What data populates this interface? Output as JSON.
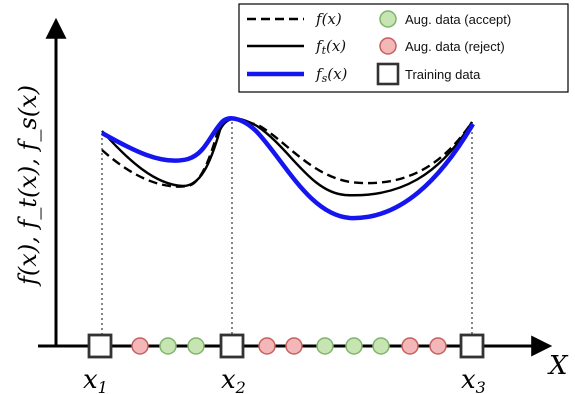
{
  "y_axis_label": "f(x), f_t(x), f_s(x)",
  "x_axis_label": "X",
  "x_ticks": [
    {
      "base": "x",
      "sub": "1"
    },
    {
      "base": "x",
      "sub": "2"
    },
    {
      "base": "x",
      "sub": "3"
    }
  ],
  "legend": {
    "f": {
      "base": "f",
      "sub": "",
      "arg": "(x)",
      "style": "dashed",
      "color": "#000000"
    },
    "ft": {
      "base": "f",
      "sub": "t",
      "arg": "(x)",
      "style": "solid",
      "color": "#000000"
    },
    "fs": {
      "base": "f",
      "sub": "s",
      "arg": "(x)",
      "style": "solid",
      "color": "#1515f0"
    },
    "accept": {
      "label": "Aug. data (accept)",
      "fill": "#c6e5b3",
      "stroke": "#7fb56a"
    },
    "reject": {
      "label": "Aug. data (reject)",
      "fill": "#f4b7b7",
      "stroke": "#c46060"
    },
    "train": {
      "label": "Training data"
    }
  },
  "axis_points": [
    "train",
    "reject",
    "accept",
    "accept",
    "train",
    "reject",
    "reject",
    "accept",
    "accept",
    "accept",
    "reject",
    "reject",
    "train"
  ]
}
